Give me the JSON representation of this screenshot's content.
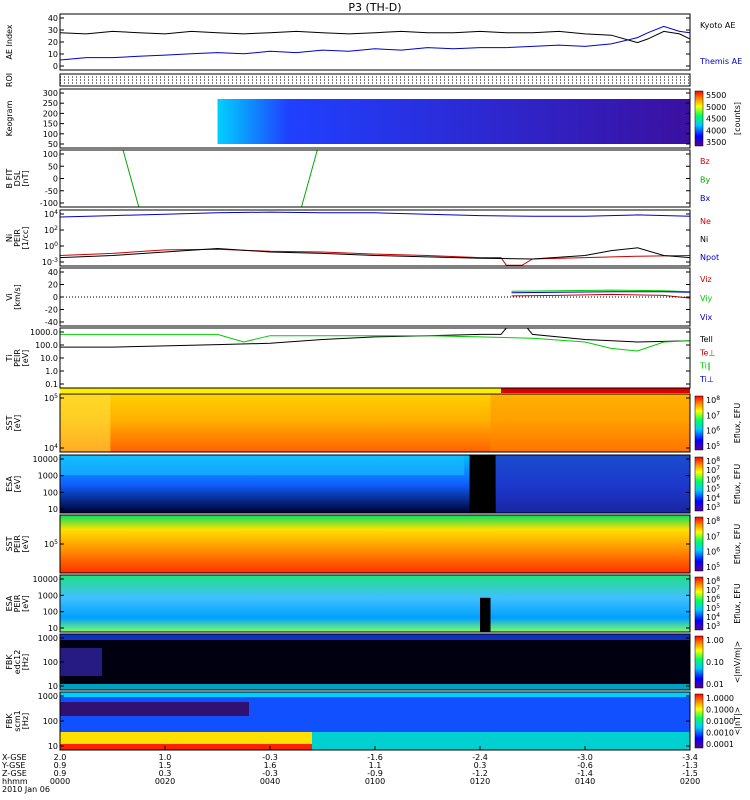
{
  "title": "P3 (TH-D)",
  "chart_data": {
    "type": "line",
    "title": "P3 (TH-D)",
    "x_tick_rows": [
      {
        "label": "X-GSE",
        "values": [
          "2.0",
          "1.0",
          "-0.3",
          "-1.6",
          "-2.4",
          "-3.0",
          "-3.4"
        ]
      },
      {
        "label": "Y-GSE",
        "values": [
          "0.9",
          "1.5",
          "1.6",
          "1.1",
          "0.3",
          "-0.6",
          "-1.3"
        ]
      },
      {
        "label": "Z-GSE",
        "values": [
          "0.9",
          "0.3",
          "-0.3",
          "-0.9",
          "-1.2",
          "-1.4",
          "-1.5"
        ]
      },
      {
        "label": "hhmm",
        "values": [
          "0000",
          "0020",
          "0040",
          "0100",
          "0120",
          "0140",
          "0200"
        ]
      }
    ],
    "date_label": "2010 Jan 06",
    "panels": [
      {
        "id": "ae",
        "ylabel": "AE Index",
        "yticks": [
          "0",
          "10",
          "20",
          "30",
          "40"
        ],
        "ylim": [
          0,
          45
        ],
        "series": [
          {
            "name": "Kyoto AE",
            "color": "#000000",
            "x": [
              0,
              5,
              10,
              15,
              20,
              25,
              30,
              35,
              40,
              45,
              50,
              55,
              60,
              65,
              70,
              75,
              80,
              85,
              90,
              95,
              100,
              105,
              110,
              112,
              115,
              118,
              120
            ],
            "y": [
              30,
              29,
              31,
              30,
              29,
              31,
              30,
              29,
              30,
              31,
              30,
              29,
              30,
              31,
              30,
              30,
              31,
              30,
              30,
              31,
              29,
              28,
              22,
              25,
              31,
              29,
              25
            ]
          },
          {
            "name": "Themis AE",
            "color": "#0000cc",
            "x": [
              0,
              5,
              10,
              15,
              20,
              25,
              30,
              35,
              40,
              45,
              50,
              55,
              60,
              65,
              70,
              75,
              80,
              85,
              90,
              95,
              100,
              105,
              110,
              112,
              115,
              118,
              120
            ],
            "y": [
              8,
              10,
              10,
              11,
              12,
              13,
              14,
              13,
              15,
              14,
              16,
              15,
              17,
              16,
              18,
              17,
              18,
              18,
              19,
              20,
              19,
              21,
              26,
              30,
              35,
              31,
              30
            ]
          }
        ]
      },
      {
        "id": "roi",
        "ylabel": "ROI",
        "yticks": [],
        "ylim": [
          0,
          1
        ],
        "series": []
      },
      {
        "id": "keogram",
        "ylabel": "Keogram",
        "yticks": [
          "50",
          "100",
          "150",
          "200",
          "250",
          "300"
        ],
        "ylim": [
          0,
          300
        ],
        "colorbar": {
          "label": "[counts]",
          "ticks": [
            "5500",
            "5000",
            "4500",
            "4000",
            "3500"
          ]
        },
        "data_start": 30
      },
      {
        "id": "bfit",
        "ylabel": "B FIT\nDSL\n[nT]",
        "yticks": [
          "-100",
          "-50",
          "0",
          "50",
          "100"
        ],
        "ylim": [
          -120,
          100
        ],
        "series": [
          {
            "name": "Bz",
            "color": "#cc0000",
            "x": [],
            "y": []
          },
          {
            "name": "By",
            "color": "#00aa00",
            "x": [
              12,
              15,
              46,
              49
            ],
            "y": [
              100,
              -120,
              -120,
              100
            ]
          },
          {
            "name": "Bx",
            "color": "#0000cc",
            "x": [],
            "y": []
          }
        ]
      },
      {
        "id": "ni",
        "ylabel": "Ni\nPEIR\n[1/cc]",
        "yticks": [
          "10^-3",
          "10^0",
          "10^2",
          "10^4"
        ],
        "ylim": [
          -3,
          5
        ],
        "series": [
          {
            "name": "Ne",
            "color": "#cc0000",
            "x": [
              0,
              10,
              20,
              30,
              40,
              50,
              60,
              70,
              80,
              84,
              85,
              88,
              90,
              100,
              110,
              120
            ],
            "y": [
              -1.5,
              -1.2,
              -0.7,
              -0.6,
              -0.9,
              -1.0,
              -1.3,
              -1.5,
              -1.8,
              -1.8,
              -2.9,
              -2.9,
              -2.0,
              -1.8,
              -1.6,
              -1.5
            ]
          },
          {
            "name": "Ni",
            "color": "#000000",
            "x": [
              0,
              10,
              20,
              30,
              40,
              50,
              60,
              70,
              80,
              90,
              100,
              105,
              110,
              115,
              120
            ],
            "y": [
              -1.8,
              -1.5,
              -1.0,
              -0.5,
              -1.0,
              -1.2,
              -1.5,
              -1.7,
              -1.9,
              -2.0,
              -1.5,
              -0.8,
              -0.4,
              -1.5,
              -1.8
            ]
          },
          {
            "name": "Npot",
            "color": "#0000cc",
            "x": [
              0,
              10,
              20,
              30,
              40,
              50,
              60,
              70,
              80,
              90,
              100,
              110,
              120
            ],
            "y": [
              4.0,
              4.2,
              4.4,
              4.6,
              4.7,
              4.6,
              4.6,
              4.4,
              4.2,
              4.1,
              4.1,
              4.3,
              4.1
            ]
          }
        ]
      },
      {
        "id": "vi",
        "ylabel": "Vi\n[km/s]",
        "yticks": [
          "-40",
          "-20",
          "0",
          "20",
          "40"
        ],
        "ylim": [
          -55,
          55
        ],
        "series": [
          {
            "name": "Viz",
            "color": "#cc0000",
            "x": [
              86,
              95,
              105,
              115,
              120
            ],
            "y": [
              2,
              3,
              5,
              3,
              -2
            ]
          },
          {
            "name": "Viy",
            "color": "#00cc00",
            "x": [
              86,
              95,
              105,
              115,
              120
            ],
            "y": [
              11,
              12,
              13,
              12,
              10
            ]
          },
          {
            "name": "Vix",
            "color": "#0000cc",
            "x": [
              86,
              95,
              105,
              115,
              120
            ],
            "y": [
              8,
              9,
              10,
              10,
              9
            ]
          }
        ]
      },
      {
        "id": "ti",
        "ylabel": "Ti\nPEIR\n[eV]",
        "yticks": [
          "0.1",
          "1.0",
          "10.0",
          "100.0",
          "1000.0"
        ],
        "ylim": [
          -1.2,
          3.5
        ],
        "series": [
          {
            "name": "Tell",
            "color": "#000000",
            "x": [
              0,
              10,
              20,
              30,
              40,
              50,
              60,
              70,
              80,
              84,
              85,
              89,
              90,
              100,
              110,
              120
            ],
            "y": [
              2.0,
              2.0,
              2.1,
              2.2,
              2.3,
              2.6,
              2.8,
              2.9,
              3.0,
              3.0,
              3.5,
              3.5,
              3.0,
              2.6,
              2.4,
              2.5
            ]
          },
          {
            "name": "Te⊥",
            "color": "#cc0000",
            "x": [],
            "y": []
          },
          {
            "name": "Ti∥",
            "color": "#00cc00",
            "x": [
              0,
              10,
              20,
              30,
              35,
              40,
              50,
              60,
              70,
              80,
              90,
              100,
              105,
              110,
              115,
              120
            ],
            "y": [
              3.0,
              3.0,
              3.0,
              3.0,
              2.4,
              2.9,
              2.9,
              2.9,
              2.9,
              2.8,
              2.7,
              2.4,
              1.9,
              1.7,
              2.4,
              2.5
            ]
          },
          {
            "name": "Ti⊥",
            "color": "#0000cc",
            "x": [],
            "y": []
          }
        ]
      },
      {
        "id": "sst_e",
        "ylabel": "SST\n[eV]",
        "yticks": [
          "10^4",
          "10^5"
        ],
        "colorbar": {
          "label": "Eflux, EFU",
          "ticks": [
            "10^8",
            "10^7",
            "10^6",
            "10^5"
          ]
        }
      },
      {
        "id": "esa_e",
        "ylabel": "ESA\n[eV]",
        "yticks": [
          "10",
          "100",
          "1000",
          "10000"
        ],
        "colorbar": {
          "label": "Eflux, EFU",
          "ticks": [
            "10^8",
            "10^7",
            "10^6",
            "10^5",
            "10^4",
            "10^3"
          ]
        }
      },
      {
        "id": "sst_i",
        "ylabel": "SST\nPEIR\n[eV]",
        "yticks": [
          "10^5"
        ],
        "colorbar": {
          "label": "Eflux, EFU",
          "ticks": [
            "10^8",
            "10^7",
            "10^6",
            "10^5"
          ]
        }
      },
      {
        "id": "esa_i",
        "ylabel": "ESA\nPEIR\n[eV]",
        "yticks": [
          "10",
          "100",
          "1000",
          "10000"
        ],
        "colorbar": {
          "label": "Eflux, EFU",
          "ticks": [
            "10^8",
            "10^7",
            "10^6",
            "10^5",
            "10^4",
            "10^3"
          ]
        }
      },
      {
        "id": "fbk_e12",
        "ylabel": "FBK\nedc12\n[Hz]",
        "yticks": [
          "10",
          "100",
          "1000"
        ],
        "colorbar": {
          "label": "<|mV/m|>",
          "ticks": [
            "1.00",
            "0.10",
            "0.01"
          ]
        }
      },
      {
        "id": "fbk_scm",
        "ylabel": "FBK\nscm1\n[Hz]",
        "yticks": [
          "10",
          "100",
          "1000"
        ],
        "colorbar": {
          "label": "<|nT|>",
          "ticks": [
            "1.0000",
            "0.1000",
            "0.0100",
            "0.0010",
            "0.0001"
          ]
        }
      }
    ]
  }
}
